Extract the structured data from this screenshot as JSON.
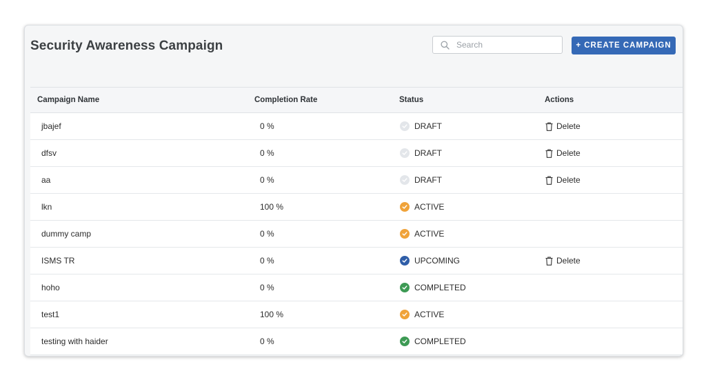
{
  "page": {
    "title": "Security Awareness Campaign",
    "search_placeholder": "Search",
    "create_button": "+ CREATE CAMPAIGN"
  },
  "table": {
    "columns": [
      "Campaign Name",
      "Completion Rate",
      "Status",
      "Actions"
    ],
    "rows": [
      {
        "name": "jbajef",
        "rate": "0 %",
        "status": "DRAFT",
        "action": "Delete"
      },
      {
        "name": "dfsv",
        "rate": "0 %",
        "status": "DRAFT",
        "action": "Delete"
      },
      {
        "name": "aa",
        "rate": "0 %",
        "status": "DRAFT",
        "action": "Delete"
      },
      {
        "name": "lkn",
        "rate": "100 %",
        "status": "ACTIVE",
        "action": ""
      },
      {
        "name": "dummy camp",
        "rate": "0 %",
        "status": "ACTIVE",
        "action": ""
      },
      {
        "name": "ISMS TR",
        "rate": "0 %",
        "status": "UPCOMING",
        "action": "Delete"
      },
      {
        "name": "hoho",
        "rate": "0 %",
        "status": "COMPLETED",
        "action": ""
      },
      {
        "name": "test1",
        "rate": "100 %",
        "status": "ACTIVE",
        "action": ""
      },
      {
        "name": "testing with haider",
        "rate": "0 %",
        "status": "COMPLETED",
        "action": ""
      }
    ]
  },
  "status_colors": {
    "DRAFT": "#e3e6ea",
    "ACTIVE": "#f0a33a",
    "UPCOMING": "#2f5ea8",
    "COMPLETED": "#3d9a54"
  },
  "colors": {
    "accent": "#3569b6"
  },
  "icons": {
    "search": "search-icon",
    "status": "check-circle-icon",
    "delete": "trash-icon"
  }
}
